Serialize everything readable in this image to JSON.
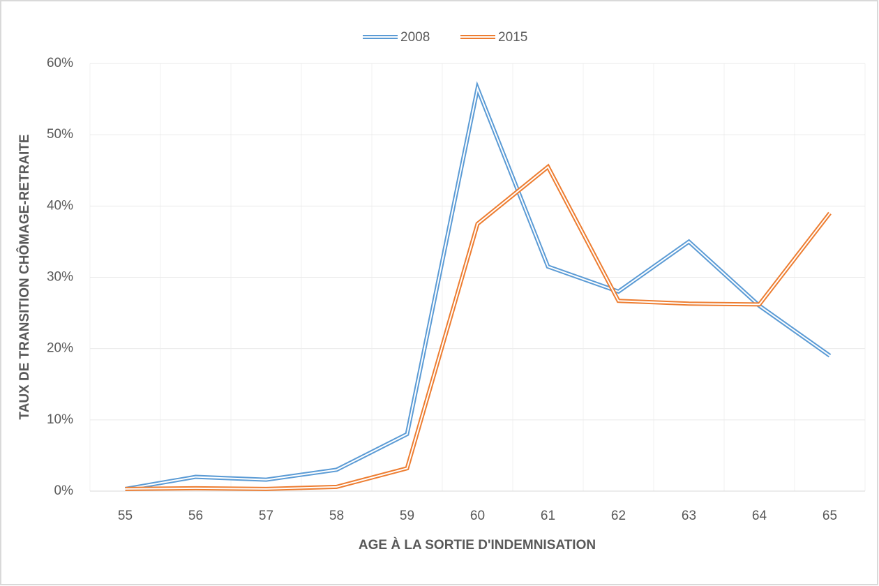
{
  "chart_data": {
    "type": "line",
    "x_label": "AGE À LA SORTIE D'INDEMNISATION",
    "y_label": "TAUX DE TRANSITION CHÔMAGE-RETRAITE",
    "categories": [
      "55",
      "56",
      "57",
      "58",
      "59",
      "60",
      "61",
      "62",
      "63",
      "64",
      "65"
    ],
    "series": [
      {
        "name": "2008",
        "color": "#5b9bd5",
        "values": [
          0.3,
          2,
          1.6,
          3,
          8,
          56.5,
          31.5,
          28,
          35,
          26,
          19
        ]
      },
      {
        "name": "2015",
        "color": "#ed7d31",
        "values": [
          0.3,
          0.4,
          0.3,
          0.6,
          3.2,
          37.5,
          45.5,
          26.7,
          26.3,
          26.2,
          39
        ]
      }
    ],
    "ylim": [
      0,
      60
    ],
    "yticks": [
      {
        "value": 0,
        "label": "0%"
      },
      {
        "value": 10,
        "label": "10%"
      },
      {
        "value": 20,
        "label": "20%"
      },
      {
        "value": 30,
        "label": "30%"
      },
      {
        "value": 40,
        "label": "40%"
      },
      {
        "value": 50,
        "label": "50%"
      },
      {
        "value": 60,
        "label": "60%"
      }
    ],
    "grid": true,
    "legend": "top"
  }
}
